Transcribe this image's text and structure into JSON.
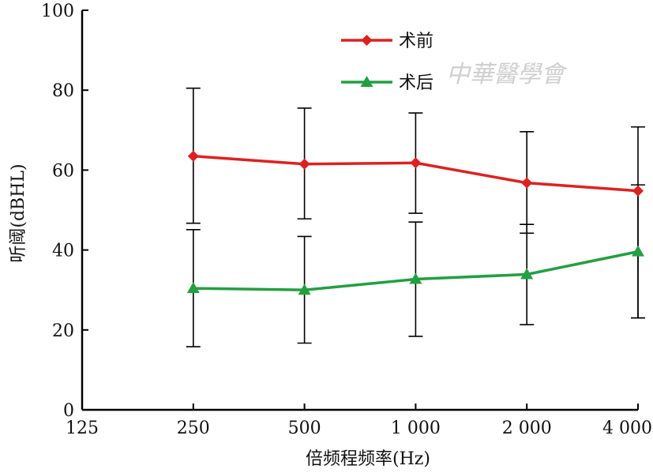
{
  "chart_data": {
    "type": "line",
    "x": [
      "125",
      "250",
      "500",
      "1 000",
      "2 000",
      "4 000"
    ],
    "xlabel": "倍频程频率(Hz)",
    "ylabel": "听阈(dBHL)",
    "ylim": [
      0,
      100
    ],
    "yticks": [
      "0",
      "20",
      "40",
      "60",
      "80",
      "100"
    ],
    "legend_position": "top-center",
    "watermark": "中華醫學會",
    "series": [
      {
        "name": "术前",
        "color": "#e02020",
        "marker": "diamond",
        "x": [
          "250",
          "500",
          "1 000",
          "2 000",
          "4 000"
        ],
        "values": [
          63.5,
          61.5,
          61.8,
          56.8,
          54.8
        ],
        "err_low": [
          46.7,
          47.8,
          49.2,
          44.2,
          23
        ],
        "err_high": [
          80.5,
          75.5,
          74.3,
          69.6,
          70.8
        ]
      },
      {
        "name": "术后",
        "color": "#22a040",
        "marker": "triangle",
        "x": [
          "250",
          "500",
          "1 000",
          "2 000",
          "4 000"
        ],
        "values": [
          30.4,
          30.0,
          32.7,
          33.9,
          39.6
        ],
        "err_low": [
          15.8,
          16.7,
          18.4,
          21.3,
          23
        ],
        "err_high": [
          45.1,
          43.4,
          47.0,
          46.4,
          56.3
        ]
      }
    ]
  }
}
